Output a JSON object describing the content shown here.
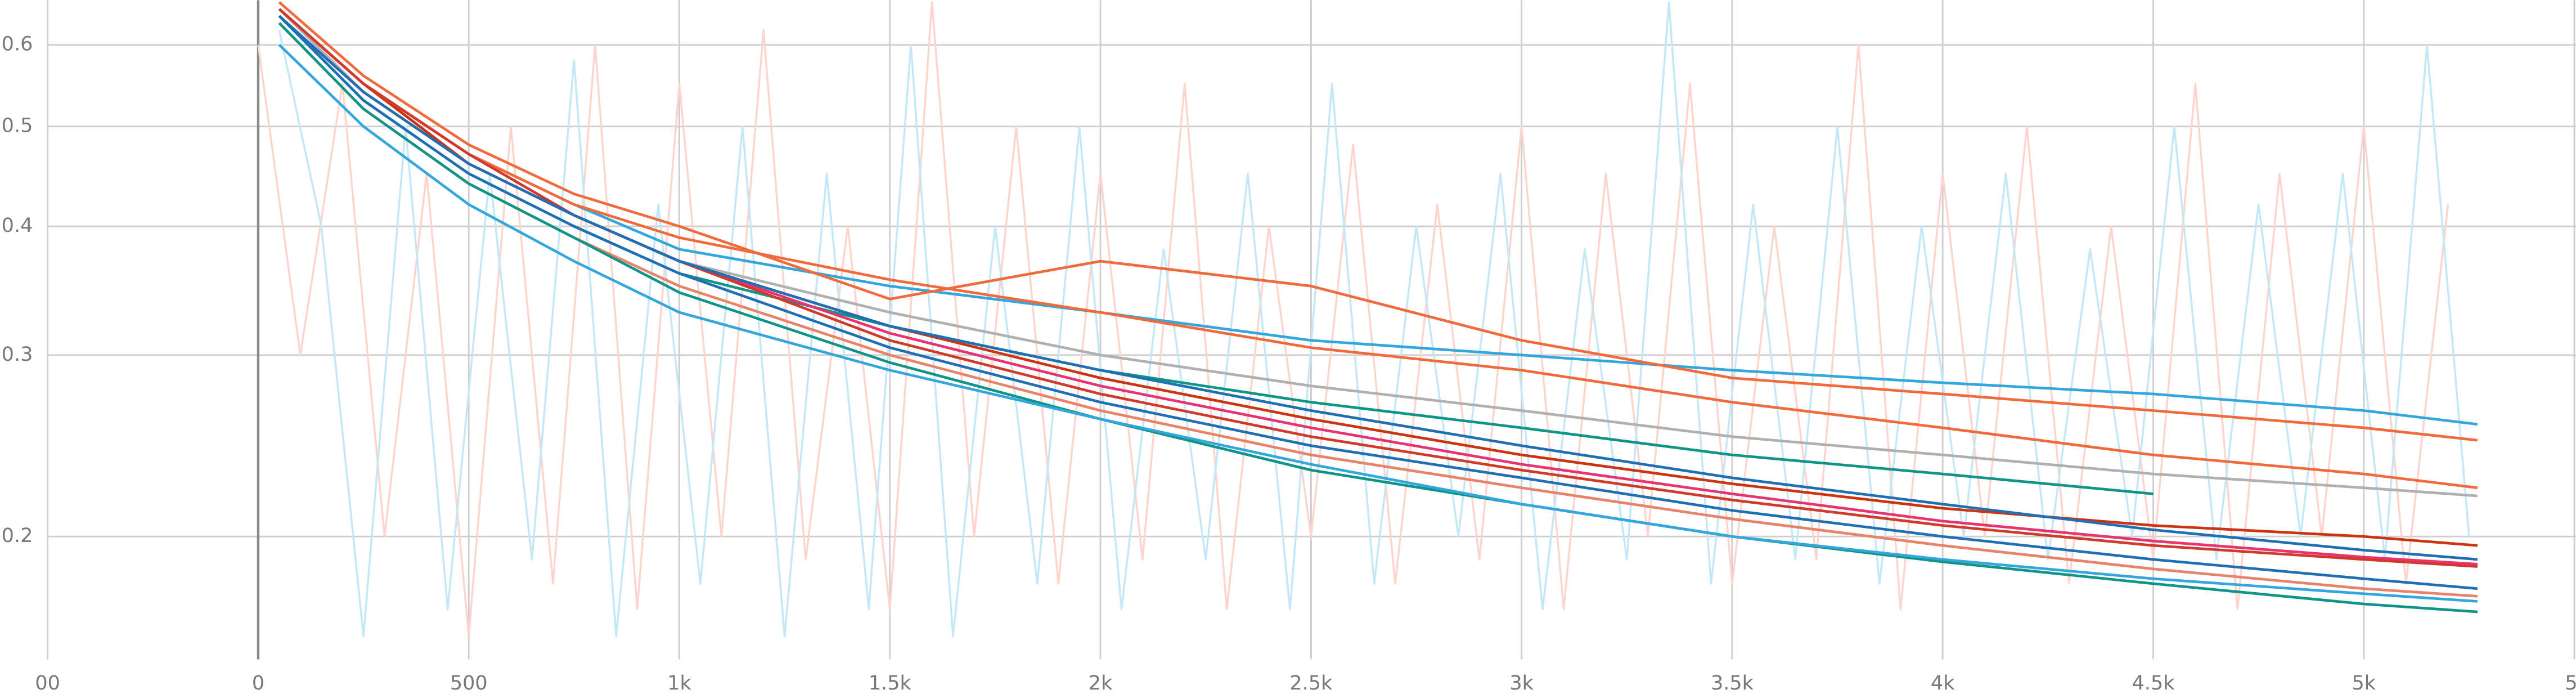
{
  "chart_data": {
    "type": "line",
    "yscale": "log",
    "grid": true,
    "xlim": [
      -500,
      5500
    ],
    "ylim": [
      0.152,
      0.663
    ],
    "xticks": [
      {
        "value": -500,
        "label": "00"
      },
      0,
      500,
      {
        "value": 1000,
        "label": "1k"
      },
      {
        "value": 1500,
        "label": "1.5k"
      },
      {
        "value": 2000,
        "label": "2k"
      },
      {
        "value": 2500,
        "label": "2.5k"
      },
      {
        "value": 3000,
        "label": "3k"
      },
      {
        "value": 3500,
        "label": "3.5k"
      },
      {
        "value": 4000,
        "label": "4k"
      },
      {
        "value": 4500,
        "label": "4.5k"
      },
      {
        "value": 5000,
        "label": "5k"
      },
      {
        "value": 5500,
        "label": "5."
      }
    ],
    "yticks": [
      0.2,
      0.3,
      0.4,
      0.5,
      0.6
    ],
    "raw_series": [
      {
        "color": "#fdd5cc",
        "x": [
          0,
          100,
          200,
          300,
          400,
          500,
          600,
          700,
          800,
          900,
          1000,
          1100,
          1200,
          1300,
          1400,
          1500,
          1600,
          1700,
          1800,
          1900,
          2000,
          2100,
          2200,
          2300,
          2400,
          2500,
          2600,
          2700,
          2800,
          2900,
          3000,
          3100,
          3200,
          3300,
          3400,
          3500,
          3600,
          3700,
          3800,
          3900,
          4000,
          4100,
          4200,
          4300,
          4400,
          4500,
          4600,
          4700,
          4800,
          4900,
          5000,
          5100,
          5200
        ],
        "values": [
          0.6,
          0.3,
          0.55,
          0.2,
          0.45,
          0.16,
          0.5,
          0.18,
          0.6,
          0.17,
          0.55,
          0.2,
          0.62,
          0.19,
          0.4,
          0.17,
          0.66,
          0.2,
          0.5,
          0.18,
          0.45,
          0.19,
          0.55,
          0.17,
          0.4,
          0.2,
          0.48,
          0.18,
          0.42,
          0.19,
          0.5,
          0.17,
          0.45,
          0.2,
          0.55,
          0.18,
          0.4,
          0.19,
          0.6,
          0.17,
          0.45,
          0.2,
          0.5,
          0.18,
          0.4,
          0.19,
          0.55,
          0.17,
          0.45,
          0.2,
          0.5,
          0.18,
          0.42
        ]
      },
      {
        "color": "#c4e8f5",
        "x": [
          50,
          150,
          250,
          350,
          450,
          550,
          650,
          750,
          850,
          950,
          1050,
          1150,
          1250,
          1350,
          1450,
          1550,
          1650,
          1750,
          1850,
          1950,
          2050,
          2150,
          2250,
          2350,
          2450,
          2550,
          2650,
          2750,
          2850,
          2950,
          3050,
          3150,
          3250,
          3350,
          3450,
          3550,
          3650,
          3750,
          3850,
          3950,
          4050,
          4150,
          4250,
          4350,
          4450,
          4550,
          4650,
          4750,
          4850,
          4950,
          5050,
          5150,
          5250
        ],
        "values": [
          0.62,
          0.4,
          0.16,
          0.5,
          0.17,
          0.45,
          0.19,
          0.58,
          0.16,
          0.42,
          0.18,
          0.5,
          0.16,
          0.45,
          0.17,
          0.6,
          0.16,
          0.4,
          0.18,
          0.5,
          0.17,
          0.38,
          0.19,
          0.45,
          0.17,
          0.55,
          0.18,
          0.4,
          0.2,
          0.45,
          0.17,
          0.38,
          0.19,
          0.66,
          0.18,
          0.42,
          0.19,
          0.5,
          0.18,
          0.4,
          0.2,
          0.45,
          0.19,
          0.38,
          0.2,
          0.5,
          0.19,
          0.42,
          0.2,
          0.45,
          0.19,
          0.6,
          0.2
        ]
      }
    ],
    "x": [
      50,
      250,
      500,
      750,
      1000,
      1500,
      2000,
      2500,
      3000,
      3500,
      4000,
      4500,
      5000,
      5270
    ],
    "series": [
      {
        "color": "#33a7dd",
        "values": [
          0.65,
          0.55,
          0.47,
          0.42,
          0.38,
          0.35,
          0.33,
          0.31,
          0.3,
          0.29,
          0.282,
          0.275,
          0.265,
          0.257
        ]
      },
      {
        "color": "#f06a3c",
        "values": [
          0.66,
          0.56,
          0.48,
          0.43,
          0.4,
          0.34,
          0.37,
          0.35,
          0.31,
          0.285,
          0.275,
          0.265,
          0.255,
          0.248
        ]
      },
      {
        "color": "#f06a3c",
        "values": [
          0.65,
          0.55,
          0.47,
          0.42,
          0.39,
          0.355,
          0.33,
          0.305,
          0.29,
          0.27,
          0.255,
          0.24,
          0.23,
          0.223
        ]
      },
      {
        "color": "#b0b0b0",
        "values": [
          0.65,
          0.54,
          0.46,
          0.41,
          0.37,
          0.33,
          0.3,
          0.28,
          0.265,
          0.25,
          0.24,
          0.23,
          0.223,
          0.219
        ]
      },
      {
        "color": "#0f9488",
        "values": [
          0.64,
          0.53,
          0.45,
          0.4,
          0.36,
          0.32,
          0.29,
          0.27,
          0.255,
          0.24,
          0.23,
          0.22,
          null,
          null
        ]
      },
      {
        "color": "#cc3311",
        "values": [
          0.65,
          0.55,
          0.46,
          0.41,
          0.37,
          0.32,
          0.285,
          0.26,
          0.24,
          0.225,
          0.213,
          0.205,
          0.2,
          0.196
        ]
      },
      {
        "color": "#e8336f",
        "values": [
          0.64,
          0.54,
          0.46,
          0.41,
          0.37,
          0.315,
          0.28,
          0.255,
          0.235,
          0.22,
          0.207,
          0.198,
          0.191,
          0.188
        ]
      },
      {
        "color": "#d13a2a",
        "values": [
          0.65,
          0.55,
          0.47,
          0.41,
          0.37,
          0.31,
          0.275,
          0.25,
          0.232,
          0.217,
          0.205,
          0.196,
          0.19,
          0.187
        ]
      },
      {
        "color": "#1f6fb5",
        "values": [
          0.64,
          0.53,
          0.45,
          0.4,
          0.36,
          0.305,
          0.27,
          0.245,
          0.228,
          0.212,
          0.2,
          0.19,
          0.182,
          0.178
        ]
      },
      {
        "color": "#e8836a",
        "values": [
          0.63,
          0.52,
          0.44,
          0.39,
          0.35,
          0.3,
          0.265,
          0.24,
          0.223,
          0.208,
          0.196,
          0.186,
          0.178,
          0.175
        ]
      },
      {
        "color": "#0f9488",
        "values": [
          0.63,
          0.52,
          0.44,
          0.39,
          0.345,
          0.295,
          0.26,
          0.232,
          0.215,
          0.2,
          0.189,
          0.18,
          0.172,
          0.169
        ]
      },
      {
        "color": "#33a7dd",
        "values": [
          0.6,
          0.5,
          0.42,
          0.37,
          0.33,
          0.29,
          0.26,
          0.235,
          0.215,
          0.2,
          0.19,
          0.182,
          0.176,
          0.173
        ]
      },
      {
        "color": "#1f6fb5",
        "values": [
          0.64,
          0.54,
          0.46,
          0.41,
          0.37,
          0.32,
          0.29,
          0.265,
          0.245,
          0.228,
          0.215,
          0.203,
          0.194,
          0.19
        ]
      }
    ]
  }
}
